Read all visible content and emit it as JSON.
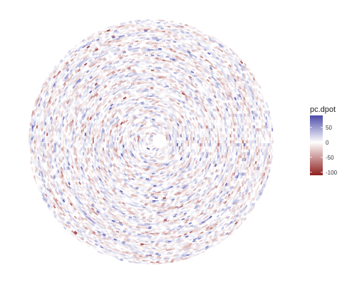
{
  "chart_data": {
    "type": "heatmap",
    "projection": "polar",
    "title": "",
    "fill_variable": "pc.dpot",
    "legend": {
      "title": "pc.dpot",
      "placement": "right",
      "limits": [
        -110,
        90
      ],
      "breaks": [
        50,
        0,
        -50,
        -100
      ],
      "break_labels": [
        "50",
        "0",
        "-50",
        "-100"
      ]
    },
    "colors": {
      "high": "#4b4ba8",
      "mid": "#ffffff",
      "low": "#8e1f1f"
    },
    "grid": false,
    "axes_visible": false
  }
}
